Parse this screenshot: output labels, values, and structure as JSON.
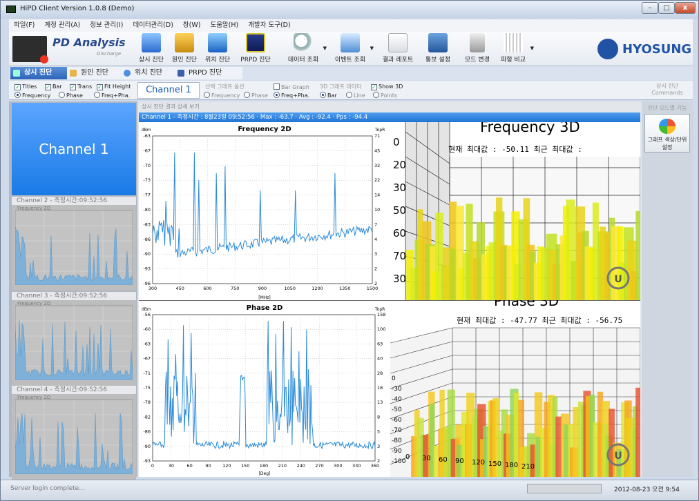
{
  "window": {
    "title": "HiPD Client Version 1.0.8 (Demo)"
  },
  "menu": [
    "파일(F)",
    "계정 관리(A)",
    "정보 관리(I)",
    "데이터관리(D)",
    "창(W)",
    "도움말(H)",
    "개발자 도구(D)"
  ],
  "logo": {
    "title": "PD Analysis",
    "subtitle": "Discharge"
  },
  "toolbar": [
    "상시 진단",
    "원인 진단",
    "위치 진단",
    "PRPD 진단",
    "데이터 조회",
    "이벤트 조회",
    "결과 레포트",
    "통보 설정",
    "모드 변경",
    "파형 비교"
  ],
  "brand": "HYOSUNG",
  "tabs": [
    "상시 진단",
    "원인 진단",
    "위치 진단",
    "PRPD 진단"
  ],
  "options": {
    "checks": [
      "Titles",
      "Bar",
      "Trans",
      "Fit Height"
    ],
    "radios": [
      "Frequency",
      "Phase",
      "Freq+Pha."
    ],
    "channel": "Channel 1",
    "graph_group": "선택 그래프 옵션",
    "graph_radios": [
      "Frequency",
      "Phase",
      "Freq+Pha."
    ],
    "bar_graph": "Bar Graph",
    "data3d_group": "3D 그래프 데이터",
    "data3d_radios": [
      "Bar",
      "Line",
      "Points"
    ],
    "show3d": "Show 3D",
    "commands": "상시 진단 Commands"
  },
  "channels": {
    "ch1": "Channel 1",
    "ch2": "Channel 2 - 측정시간:09:52:56",
    "ch3": "Channel 3 - 측정시간:09:52:56",
    "ch4": "Channel 4 - 측정시간:09:52:56",
    "mini_title": "Frequency 2D"
  },
  "center": {
    "caption": "상시 진단 결과 상세 보기",
    "info": "Channel 1 - 측정시간 : 8월23일 09:52:56  ·  Max : -63.7  ·  Avg : -92.4  ·  Pps : -94.4"
  },
  "freq2d": {
    "title": "Frequency 2D",
    "ylabel": "dBm",
    "y2label": "TopR",
    "xunit": "[MHz]",
    "yticks": [
      "-63",
      "-67",
      "-70",
      "-73",
      "-77",
      "-80",
      "-83",
      "-86",
      "-90",
      "-93",
      "-96"
    ],
    "y2ticks": [
      "71",
      "45",
      "32",
      "22",
      "14",
      "10",
      "7",
      "4",
      "3",
      "2",
      "2"
    ],
    "xticks": [
      "300",
      "450",
      "600",
      "750",
      "900",
      "1050",
      "1200",
      "1350",
      "1500"
    ]
  },
  "phase2d": {
    "title": "Phase 2D",
    "ylabel": "dBm",
    "y2label": "TopR",
    "xunit": "[Deg]",
    "yticks": [
      "-56",
      "-60",
      "-63",
      "-67",
      "-71",
      "-75",
      "-78",
      "-82",
      "-86",
      "-90",
      "-93"
    ],
    "y2ticks": [
      "158",
      "100",
      "63",
      "40",
      "28",
      "18",
      "13",
      "8",
      "5",
      "3",
      "2"
    ],
    "xticks": [
      "0",
      "30",
      "60",
      "90",
      "120",
      "150",
      "180",
      "210",
      "240",
      "270",
      "300",
      "330",
      "360"
    ]
  },
  "freq3d": {
    "title": "Frequency 3D",
    "readout": "현재 최대값 : -50.11 최근 최대값 :",
    "axis_digits": [
      "0",
      "20",
      "30",
      "50",
      "60",
      "70",
      "30"
    ],
    "badge": "U"
  },
  "phase3d": {
    "title": "Phase 3D",
    "readout": "현재 최대값 : -47.77 최근 최대값 : -56.75",
    "axis_digits": [
      "0",
      "-30",
      "-40",
      "-50",
      "-60",
      "-70",
      "-80",
      "-90",
      "-100"
    ],
    "xticks": [
      "0",
      "30",
      "60",
      "90",
      "120",
      "150",
      "180",
      "210"
    ],
    "badge": "U"
  },
  "right": {
    "header": "진단 모드별 기능",
    "button": "그래프 색상/단위설정"
  },
  "status": {
    "text": "Server login complete...",
    "datetime": "2012-08-23 오전 9:54"
  }
}
